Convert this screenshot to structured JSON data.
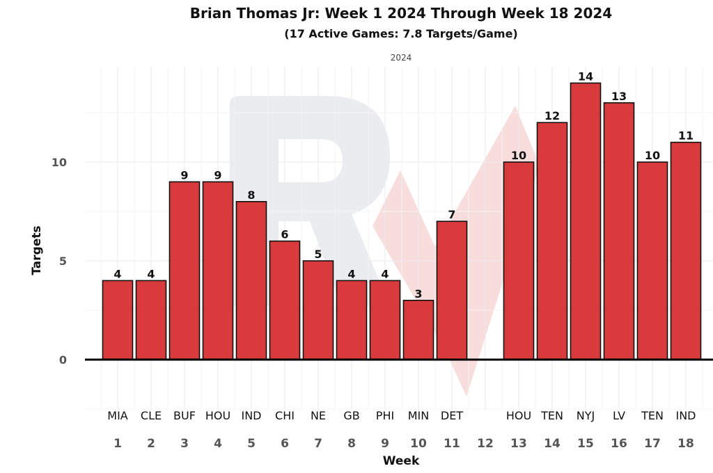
{
  "colors": {
    "bar": "#d93a3c",
    "watermark_gray": "#e3e4e8",
    "watermark_red": "#f3c6c6"
  },
  "chart_data": {
    "type": "bar",
    "title": "Brian Thomas Jr: Week 1 2024 Through Week 18 2024",
    "subtitle": "(17 Active Games: 7.8 Targets/Game)",
    "facet_label": "2024",
    "xlabel": "Week",
    "ylabel": "Targets",
    "ylim": [
      -2.6,
      14.8
    ],
    "yticks": [
      0,
      5,
      10
    ],
    "grid": true,
    "categories": [
      "1",
      "2",
      "3",
      "4",
      "5",
      "6",
      "7",
      "8",
      "9",
      "10",
      "11",
      "12",
      "13",
      "14",
      "15",
      "16",
      "17",
      "18"
    ],
    "opponents": [
      "MIA",
      "CLE",
      "BUF",
      "HOU",
      "IND",
      "CHI",
      "NE",
      "GB",
      "PHI",
      "MIN",
      "DET",
      "",
      "HOU",
      "TEN",
      "NYJ",
      "LV",
      "TEN",
      "IND"
    ],
    "values": [
      4,
      4,
      9,
      9,
      8,
      6,
      5,
      4,
      4,
      3,
      7,
      null,
      10,
      12,
      14,
      13,
      10,
      11
    ]
  }
}
